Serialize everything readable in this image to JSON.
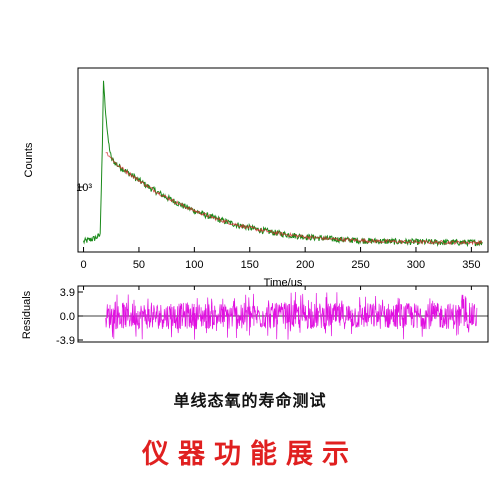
{
  "chart_data": [
    {
      "type": "line",
      "ylabel": "Counts",
      "xlabel": "Time/us",
      "x_ticks": [
        "0",
        "50",
        "100",
        "150",
        "200",
        "250",
        "300",
        "350"
      ],
      "y_tick_label": "10³",
      "xlim": [
        -5,
        365
      ],
      "yscale": "log",
      "series": [
        {
          "color": "#1a8a1a",
          "x": [
            0,
            10,
            15,
            17,
            18,
            20,
            22,
            25,
            30,
            40,
            50,
            60,
            70,
            80,
            90,
            100,
            110,
            120,
            130,
            140,
            150,
            160,
            170,
            180,
            190,
            200,
            220,
            240,
            260,
            280,
            300,
            320,
            340,
            360
          ],
          "y": [
            620,
            640,
            660,
            1600,
            3000,
            2200,
            1700,
            1400,
            1320,
            1220,
            1130,
            1050,
            985,
            930,
            880,
            840,
            805,
            775,
            750,
            728,
            710,
            694,
            680,
            668,
            658,
            650,
            638,
            630,
            624,
            620,
            618,
            616,
            615,
            614
          ]
        },
        {
          "color": "#d03030",
          "x": [
            20,
            30,
            40,
            50,
            60,
            70,
            80,
            90,
            100,
            110,
            120,
            130,
            140,
            150,
            160,
            170,
            180,
            190,
            200,
            220,
            240,
            260,
            280,
            300,
            320,
            340,
            360
          ],
          "y": [
            1500,
            1320,
            1220,
            1130,
            1050,
            985,
            930,
            880,
            840,
            805,
            775,
            750,
            728,
            710,
            694,
            680,
            668,
            658,
            650,
            638,
            630,
            624,
            620,
            618,
            616,
            615,
            614
          ]
        }
      ],
      "grid": false
    },
    {
      "type": "line",
      "ylabel": "Residuals",
      "y_ticks": [
        "3.9",
        "0.0",
        "-3.9"
      ],
      "ylim": [
        -3.9,
        3.9
      ],
      "series": [
        {
          "color": "#e010e0",
          "x_range": [
            20,
            355
          ],
          "noise_amplitude": 3.9
        }
      ],
      "grid": false
    }
  ],
  "captions": {
    "chart_title": "单线态氧的寿命测试",
    "banner": "仪器功能展示"
  }
}
